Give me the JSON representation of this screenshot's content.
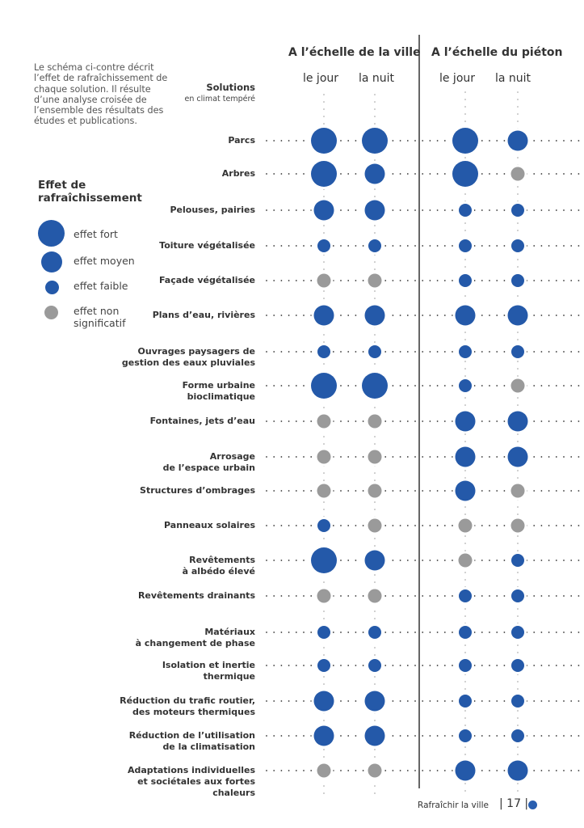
{
  "intro_text": "Le schéma ci-contre décrit l’effet de rafraîchissement de chaque solution. Il résulte d’une analyse croisée de l’ensemble des résultats des études et publications.",
  "legend": {
    "title_line1": "Effet de",
    "title_line2": "rafraîchissement",
    "items": [
      {
        "key": "fort",
        "label": "effet fort"
      },
      {
        "key": "moyen",
        "label": "effet moyen"
      },
      {
        "key": "faible",
        "label": "effet faible"
      },
      {
        "key": "ns",
        "label_line1": "effet non",
        "label_line2": "significatif"
      }
    ]
  },
  "colors": {
    "effect": "#2459a9",
    "not_significant": "#9a9a9a",
    "dots": "#333333",
    "dots_vertical": "#9a9a9a",
    "divider": "#333333"
  },
  "footer": {
    "title": "Rafraîchir la ville",
    "page_number": "| 17 |"
  },
  "chart_data": {
    "type": "table",
    "title": "Effet de rafraîchissement des solutions",
    "row_header": {
      "title": "Solutions",
      "subtitle": "en climat tempéré"
    },
    "column_groups": [
      {
        "label": "A l’échelle de la ville",
        "columns": [
          "le jour",
          "la nuit"
        ]
      },
      {
        "label": "A l’échelle du piéton",
        "columns": [
          "le jour",
          "la nuit"
        ]
      }
    ],
    "levels": [
      "fort",
      "moyen",
      "faible",
      "ns"
    ],
    "rows": [
      {
        "label": [
          "Parcs"
        ],
        "values": [
          "fort",
          "fort",
          "fort",
          "moyen"
        ]
      },
      {
        "label": [
          "Arbres"
        ],
        "values": [
          "fort",
          "moyen",
          "fort",
          "ns"
        ]
      },
      {
        "label": [
          "Pelouses, pairies"
        ],
        "values": [
          "moyen",
          "moyen",
          "faible",
          "faible"
        ]
      },
      {
        "label": [
          "Toiture végétalisée"
        ],
        "values": [
          "faible",
          "faible",
          "faible",
          "faible"
        ]
      },
      {
        "label": [
          "Façade végétalisée"
        ],
        "values": [
          "ns",
          "ns",
          "faible",
          "faible"
        ]
      },
      {
        "label": [
          "Plans d’eau, rivières"
        ],
        "values": [
          "moyen",
          "moyen",
          "moyen",
          "moyen"
        ]
      },
      {
        "label": [
          "Ouvrages paysagers de",
          "gestion des eaux pluviales"
        ],
        "values": [
          "faible",
          "faible",
          "faible",
          "faible"
        ]
      },
      {
        "label": [
          "Forme urbaine",
          "bioclimatique"
        ],
        "values": [
          "fort",
          "fort",
          "faible",
          "ns"
        ]
      },
      {
        "label": [
          "Fontaines, jets d’eau"
        ],
        "values": [
          "ns",
          "ns",
          "moyen",
          "moyen"
        ]
      },
      {
        "label": [
          "Arrosage",
          "de l’espace urbain"
        ],
        "values": [
          "ns",
          "ns",
          "moyen",
          "moyen"
        ]
      },
      {
        "label": [
          "Structures d’ombrages"
        ],
        "values": [
          "ns",
          "ns",
          "moyen",
          "ns"
        ]
      },
      {
        "label": [
          "Panneaux solaires"
        ],
        "values": [
          "faible",
          "ns",
          "ns",
          "ns"
        ]
      },
      {
        "label": [
          "Revêtements",
          "à albédo élevé"
        ],
        "values": [
          "fort",
          "moyen",
          "ns",
          "faible"
        ]
      },
      {
        "label": [
          "Revêtements drainants"
        ],
        "values": [
          "ns",
          "ns",
          "faible",
          "faible"
        ]
      },
      {
        "label": [
          "Matériaux",
          "à changement de phase"
        ],
        "values": [
          "faible",
          "faible",
          "faible",
          "faible"
        ]
      },
      {
        "label": [
          "Isolation et inertie",
          "thermique"
        ],
        "values": [
          "faible",
          "faible",
          "faible",
          "faible"
        ]
      },
      {
        "label": [
          "Réduction du trafic routier,",
          "des moteurs thermiques"
        ],
        "values": [
          "moyen",
          "moyen",
          "faible",
          "faible"
        ]
      },
      {
        "label": [
          "Réduction de l’utilisation",
          "de la climatisation"
        ],
        "values": [
          "moyen",
          "moyen",
          "faible",
          "faible"
        ]
      },
      {
        "label": [
          "Adaptations individuelles",
          "et sociétales aux fortes",
          "chaleurs"
        ],
        "values": [
          "ns",
          "ns",
          "moyen",
          "moyen"
        ]
      }
    ]
  }
}
